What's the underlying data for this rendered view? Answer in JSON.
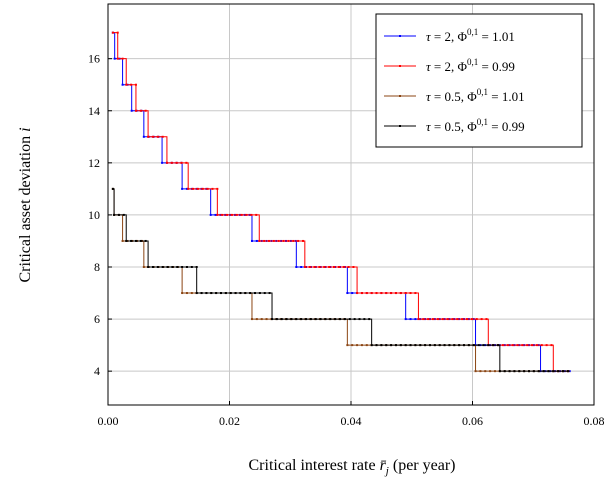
{
  "chart_data": {
    "type": "line",
    "xlabel_main": "Critical interest rate ",
    "xlabel_symbol": "r̄",
    "xlabel_sub": "j",
    "xlabel_tail": " (per year)",
    "ylabel_main": "Critical asset deviation ",
    "ylabel_symbol": "i",
    "xlim": [
      0,
      0.08
    ],
    "ylim": [
      2.7,
      18.1
    ],
    "xticks": [
      "0.00",
      "0.02",
      "0.04",
      "0.06",
      "0.08"
    ],
    "yticks": [
      "4",
      "6",
      "8",
      "10",
      "12",
      "14",
      "16"
    ],
    "grid": true,
    "legend_position": "top-right",
    "series": [
      {
        "name": "τ = 2, Φ^{0,1} = 1.01",
        "legend": {
          "tau": "2",
          "phi": "1.01"
        },
        "color": "#0000ff",
        "x": [
          0.0008,
          0.0011,
          0.0024,
          0.0039,
          0.0059,
          0.0089,
          0.0122,
          0.0169,
          0.0237,
          0.031,
          0.0394,
          0.049,
          0.0605,
          0.0712,
          0.076
        ],
        "y": [
          17,
          16,
          15,
          14,
          13,
          12,
          11,
          10,
          9,
          8,
          7,
          6,
          5,
          4,
          4
        ]
      },
      {
        "name": "τ = 2, Φ^{0,1} = 0.99",
        "legend": {
          "tau": "2",
          "phi": "0.99"
        },
        "color": "#ff0000",
        "x": [
          0.0008,
          0.0016,
          0.003,
          0.0046,
          0.0066,
          0.0097,
          0.0132,
          0.018,
          0.0249,
          0.0324,
          0.041,
          0.0511,
          0.0626,
          0.0733,
          0.076
        ],
        "y": [
          17,
          16,
          15,
          14,
          13,
          12,
          11,
          10,
          9,
          8,
          7,
          6,
          5,
          4,
          4
        ]
      },
      {
        "name": "τ = 0.5, Φ^{0,1} = 1.01",
        "legend": {
          "tau": "0.5",
          "phi": "1.01"
        },
        "color": "#8b4513",
        "x": [
          0.0008,
          0.001,
          0.0024,
          0.0059,
          0.0122,
          0.0237,
          0.0394,
          0.0605,
          0.076
        ],
        "y": [
          11,
          10,
          9,
          8,
          7,
          6,
          5,
          4,
          4
        ]
      },
      {
        "name": "τ = 0.5, Φ^{0,1} = 0.99",
        "legend": {
          "tau": "0.5",
          "phi": "0.99"
        },
        "color": "#000000",
        "x": [
          0.0008,
          0.001,
          0.003,
          0.0066,
          0.0146,
          0.027,
          0.0434,
          0.0645,
          0.076
        ],
        "y": [
          11,
          10,
          9,
          8,
          7,
          6,
          5,
          4,
          4
        ]
      }
    ]
  }
}
